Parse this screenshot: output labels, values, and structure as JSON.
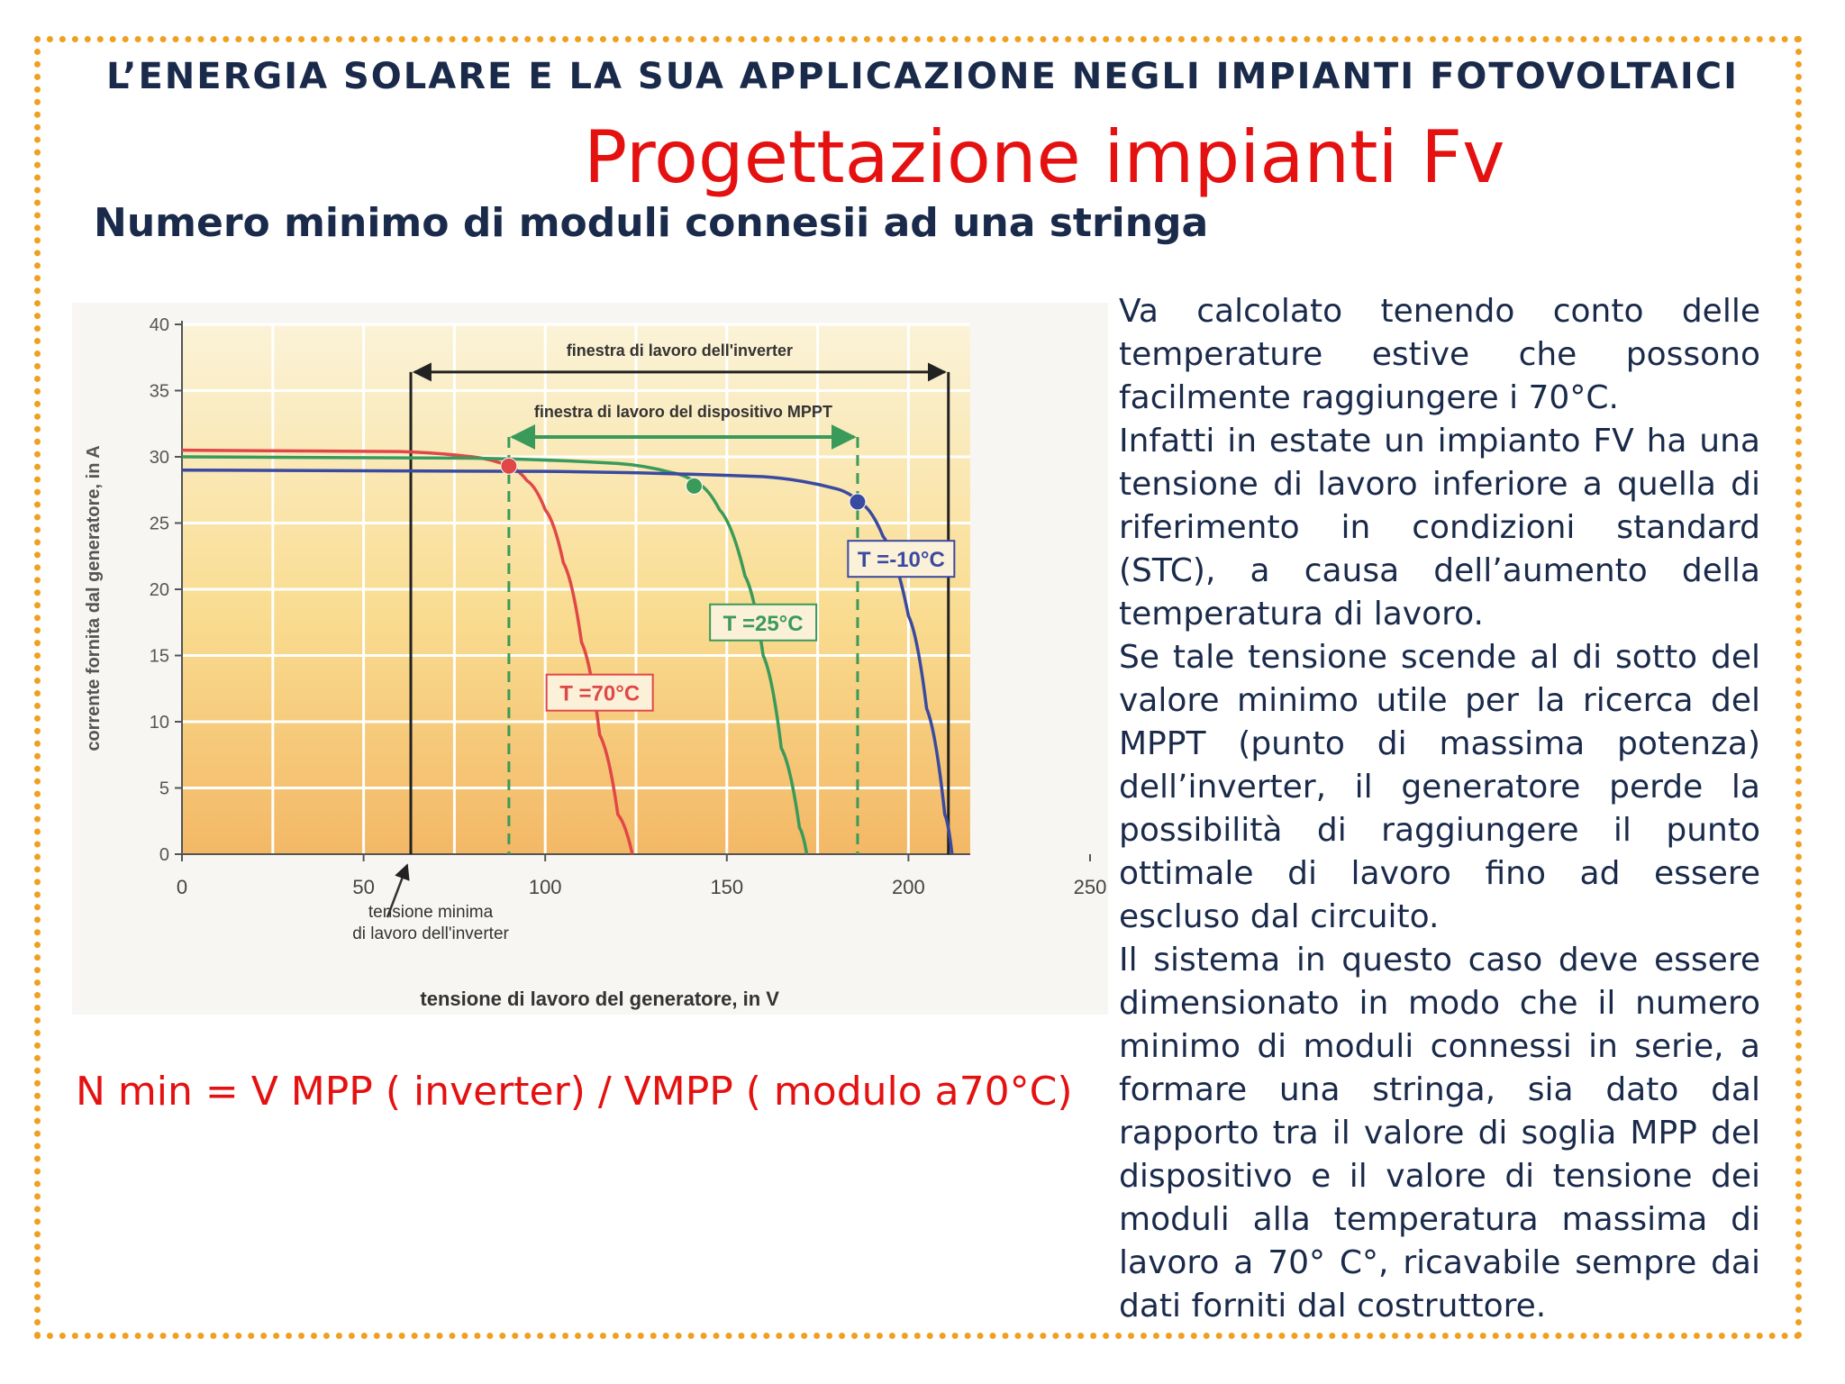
{
  "header": {
    "title": "L’ENERGIA SOLARE E LA SUA APPLICAZIONE NEGLI IMPIANTI FOTOVOLTAICI",
    "main_title": "Progettazione impianti Fv",
    "subtitle": "Numero minimo di moduli connesii ad una stringa"
  },
  "description": [
    "Va calcolato tenendo conto delle temperature estive che possono facilmente raggiungere i 70°C.",
    "Infatti in estate un impianto FV ha una tensione di lavoro inferiore a quella di riferimento in condizioni standard (STC), a causa dell’aumento della temperatura di lavoro.",
    "Se tale tensione scende al di sotto del valore minimo utile per la ricerca del MPPT (punto di massima potenza) dell’inverter, il generatore perde la possibilità di raggiungere il punto ottimale di lavoro fino ad essere escluso dal circuito.",
    "Il sistema in questo caso deve essere dimensionato in modo che il numero minimo di moduli connessi in serie, a formare una stringa, sia dato dal rapporto tra il valore di soglia MPP del dispositivo e il valore di tensione dei moduli alla temperatura massima di lavoro  a 70° C°, ricavabile sempre dai dati forniti dal costruttore."
  ],
  "formula": "N min = V MPP ( inverter) / VMPP ( modulo a70°C)",
  "colors": {
    "frame": "#f0a020",
    "title_red": "#e51010",
    "text_navy": "#1a2a4a",
    "curve_70": "#e04848",
    "curve_25": "#3a9a5a",
    "curve_m10": "#3a4aa0"
  },
  "chart_data": {
    "type": "line",
    "xlabel": "tensione di lavoro del generatore, in V",
    "ylabel": "corrente fornita dal generatore, in A",
    "xlim": [
      0,
      250
    ],
    "ylim": [
      0,
      40
    ],
    "x_ticks": [
      "0",
      "50",
      "100",
      "150",
      "200",
      "250"
    ],
    "y_ticks": [
      "0",
      "5",
      "10",
      "15",
      "20",
      "25",
      "30",
      "35",
      "40"
    ],
    "grid": true,
    "series": [
      {
        "name": "T =70°C",
        "color": "#e04848",
        "x": [
          0,
          60,
          80,
          90,
          95,
          100,
          105,
          110,
          115,
          120,
          124
        ],
        "y": [
          30.5,
          30.4,
          30.0,
          29.3,
          28.2,
          26.0,
          22.0,
          16.0,
          9.0,
          3.0,
          0
        ]
      },
      {
        "name": "T =25°C",
        "color": "#3a9a5a",
        "x": [
          0,
          80,
          120,
          135,
          142,
          148,
          155,
          160,
          165,
          170,
          172
        ],
        "y": [
          30.0,
          29.9,
          29.5,
          28.8,
          28.0,
          26.0,
          21.0,
          15.0,
          8.0,
          2.0,
          0
        ]
      },
      {
        "name": "T =-10°C",
        "color": "#3a4aa0",
        "x": [
          0,
          100,
          160,
          180,
          187,
          193,
          200,
          205,
          210,
          212
        ],
        "y": [
          29.0,
          28.9,
          28.5,
          27.6,
          26.5,
          24.0,
          18.0,
          11.0,
          3.0,
          0
        ]
      }
    ],
    "mpp_points": [
      {
        "x": 90,
        "y": 29.3,
        "color": "#e04848"
      },
      {
        "x": 141,
        "y": 27.8,
        "color": "#3a9a5a"
      },
      {
        "x": 186,
        "y": 26.6,
        "color": "#3a4aa0"
      }
    ],
    "inverter_window": {
      "label": "finestra di lavoro dell'inverter",
      "x_min": 63,
      "x_max": 211
    },
    "mppt_window": {
      "label": "finestra di lavoro del dispositivo MPPT",
      "x_min": 90,
      "x_max": 186
    },
    "annotation": {
      "line1": "tensione minima",
      "line2": "di lavoro dell'inverter"
    },
    "series_labels": [
      {
        "text": "T =70°C",
        "x": 115,
        "y": 12.2,
        "color": "#e04848"
      },
      {
        "text": "T =25°C",
        "x": 160,
        "y": 17.5,
        "color": "#3a9a5a"
      },
      {
        "text": "T =-10°C",
        "x": 198,
        "y": 22.3,
        "color": "#3a4aa0"
      }
    ]
  }
}
